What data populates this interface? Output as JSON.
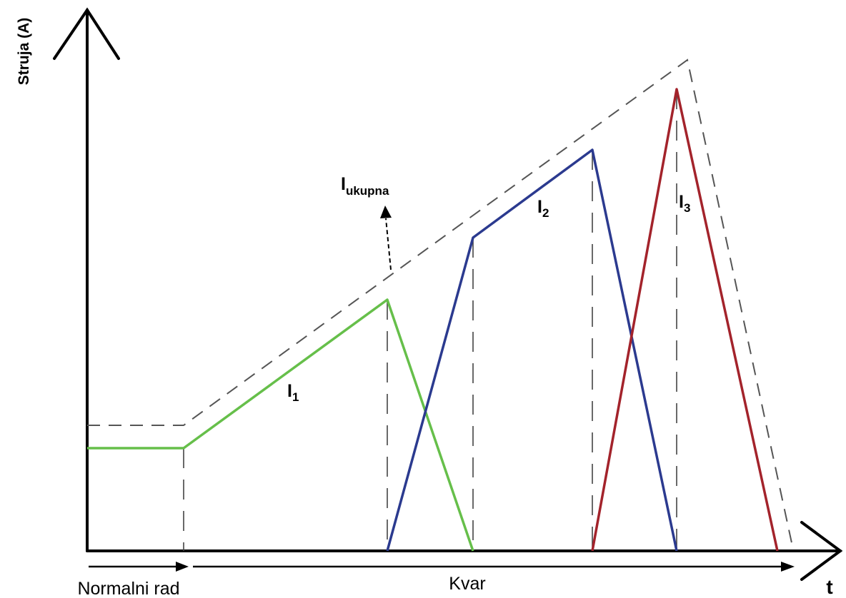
{
  "labels": {
    "y_axis": "Struja (A)",
    "x_axis": "t",
    "normal_operation": "Normalni rad",
    "fault": "Kvar",
    "i1_main": "I",
    "i1_sub": "1",
    "i2_main": "I",
    "i2_sub": "2",
    "i3_main": "I",
    "i3_sub": "3",
    "total_main": "I",
    "total_sub": "ukupna"
  },
  "colors": {
    "i1": "#66bf4a",
    "i2": "#2b3a8f",
    "i3": "#a3232b",
    "total": "#555555",
    "axes": "#000000"
  }
}
